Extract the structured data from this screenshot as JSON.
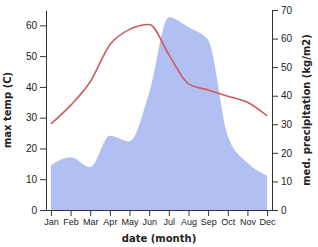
{
  "chart_data": {
    "type": "line",
    "categories": [
      "Jan",
      "Feb",
      "Mar",
      "Apr",
      "May",
      "Jun",
      "Jul",
      "Aug",
      "Sep",
      "Oct",
      "Nov",
      "Dec"
    ],
    "x_label": "date (month)",
    "y_label": "max temp (C)",
    "y2_label": "med. precipitation (kg/m2)",
    "ylim": [
      0,
      65
    ],
    "yticks": [
      0,
      10,
      20,
      30,
      40,
      50,
      60
    ],
    "y2lim": [
      0,
      70
    ],
    "y2ticks": [
      0,
      10,
      20,
      30,
      40,
      50,
      60,
      70
    ],
    "series": [
      {
        "name": "max temp",
        "type": "line",
        "axis": "y",
        "color": "#cf5a60",
        "values": [
          28,
          34,
          41.7,
          53.7,
          58.7,
          60.3,
          50.5,
          41,
          39,
          37,
          35,
          30.6
        ]
      },
      {
        "name": "med. precipitation",
        "type": "area",
        "axis": "y2",
        "color": "#b2bff3",
        "values": [
          15.7,
          18.5,
          15,
          26,
          24,
          41,
          67.5,
          64,
          59.5,
          26,
          16.5,
          12
        ]
      }
    ]
  }
}
